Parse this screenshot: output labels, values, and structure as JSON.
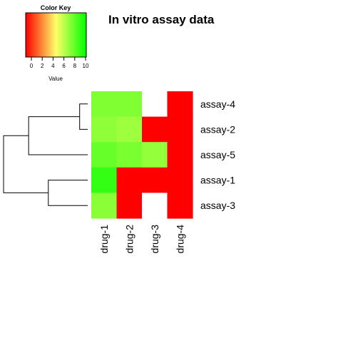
{
  "chart_data": {
    "type": "heatmap",
    "title": "In vitro assay data",
    "rows": [
      "assay-4",
      "assay-2",
      "assay-5",
      "assay-1",
      "assay-3"
    ],
    "columns": [
      "drug-1",
      "drug-2",
      "drug-3",
      "drug-4"
    ],
    "values": [
      [
        7.5,
        7.5,
        null,
        0
      ],
      [
        7.2,
        6.9,
        0,
        0
      ],
      [
        8.0,
        7.6,
        7.1,
        0
      ],
      [
        9.0,
        0,
        0,
        0
      ],
      [
        7.3,
        0,
        null,
        0
      ]
    ],
    "color_scale": {
      "low_color": "#ff0000",
      "mid_color": "#ffff66",
      "high_color": "#00ff00",
      "min": 0,
      "max": 10
    },
    "missing_color": "#ffffff",
    "color_key": {
      "title": "Color Key",
      "xlabel": "Value",
      "ticks": [
        0,
        2,
        4,
        6,
        8,
        10
      ]
    },
    "dendrogram": {
      "side": "left",
      "merges": [
        {
          "id": "m1",
          "children": [
            "assay-4",
            "assay-2"
          ],
          "height": 0.45
        },
        {
          "id": "m2",
          "children": [
            "assay-1",
            "assay-3"
          ],
          "height": 2.2
        },
        {
          "id": "m3",
          "children": [
            "m1",
            "assay-5"
          ],
          "height": 3.3
        },
        {
          "id": "m4",
          "children": [
            "m3",
            "m2"
          ],
          "height": 4.7
        }
      ]
    }
  }
}
